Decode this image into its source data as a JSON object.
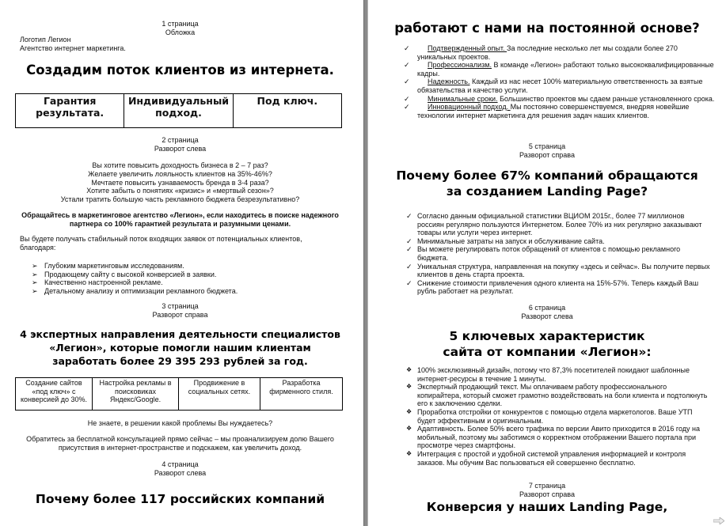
{
  "left_page": {
    "p1_label": "1 страница",
    "p1_sub": "Обложка",
    "logo_line": "Логотип Легион",
    "agency_line": "Агентство интернет маркетинга.",
    "title": "Создадим поток клиентов из интернета.",
    "table1": [
      "Гарантия результата.",
      "Индивидуальный подход.",
      "Под ключ."
    ],
    "p2_label": "2 страница",
    "p2_sub": "Разворот слева",
    "questions": [
      "Вы хотите повысить доходность бизнеса в 2 – 7 раз?",
      "Желаете увеличить лояльность клиентов на 35%-46%?",
      "Мечтаете повысить узнаваемость бренда в 3-4 раза?",
      "Хотите забыть о понятиях «кризис» и «мертвый сезон»?",
      "Устали тратить большую часть рекламного бюджета безрезультативно?"
    ],
    "bold_para": "Обращайтесь в маркетинговое агентство «Легион», если находитесь в поиске надежного партнера со 100% гарантией результата и разумными ценами.",
    "intro": "Вы будете получать стабильный поток входящих заявок от потенциальных клиентов, благодаря:",
    "reasons": [
      "Глубоким маркетинговым исследованиям.",
      "Продающему сайту с высокой конверсией в заявки.",
      "Качественно настроенной рекламе.",
      "Детальному анализу и оптимизации рекламного бюджета."
    ],
    "p3_label": "3 страница",
    "p3_sub": "Разворот справа",
    "heading3": [
      "4 экспертных направления деятельности специалистов",
      "«Легион», которые помогли нашим клиентам",
      "заработать более 29 395 293 рублей за год."
    ],
    "table2": [
      "Создание сайтов «под ключ» с конверсией до 30%.",
      "Настройка рекламы в поисковиках Яндекс/Google.",
      "Продвижение в социальных сетях.",
      "Разработка фирменного стиля."
    ],
    "question": "Не знаете, в решении какой проблемы Вы нуждаетесь?",
    "consult": "Обратитесь за бесплатной консультацией прямо сейчас – мы проанализируем долю Вашего присутствия в интернет-пространстве и подскажем, как увеличить доход.",
    "p4_label": "4 страница",
    "p4_sub": "Разворот слева",
    "heading4": "Почему более 117 российских компаний"
  },
  "right_page": {
    "heading_cont": "работают с нами на постоянной основе?",
    "advantages": [
      {
        "term": "Подтвержденный опыт. ",
        "text": " За последние несколько лет мы создали более 270 уникальных проектов."
      },
      {
        "term": "Профессионализм.",
        "text": " В команде «Легион» работают только высококвалифицированные кадры."
      },
      {
        "term": "Надежность.",
        "text": " Каждый из нас несет 100% материальную ответственность за взятые обязательства и качество услуги."
      },
      {
        "term": "Минимальные сроки.",
        "text": " Большинство проектов мы сдаем раньше установленного срока."
      },
      {
        "term": "Инновационный подход. ",
        "text": "Мы постоянно совершенствуемся, внедряя новейшие технологии интернет маркетинга для решения задач наших клиентов."
      }
    ],
    "p5_label": "5 страница",
    "p5_sub": "Разворот справа",
    "heading5": [
      "Почему более 67% компаний обращаются",
      "за созданием Landing Page?"
    ],
    "landing_reasons": [
      "Согласно данным официальной статистики ВЦИОМ 2015г., более 77 миллионов россиян регулярно пользуются Интернетом. Более 70% из них регулярно заказывают товары или услуги через интернет.",
      "Минимальные затраты на запуск и обслуживание сайта.",
      "Вы можете регулировать поток обращений от клиентов с помощью рекламного бюджета.",
      "Уникальная структура, направленная на покупку «здесь и сейчас». Вы получите первых клиентов в день старта проекта.",
      "Снижение стоимости привлечения одного клиента на 15%-57%. Теперь каждый Ваш рубль работает на результат."
    ],
    "p6_label": "6 страница",
    "p6_sub": "Разворот слева",
    "heading6": [
      "5 ключевых характеристик",
      "сайта от компании «Легион»:"
    ],
    "features": [
      "100% эксклюзивный дизайн, потому что 87,3% посетителей покидают шаблонные интернет-ресурсы в течение 1 минуты.",
      "Экспертный продающий текст. Мы оплачиваем работу профессионального копирайтера, который сможет грамотно воздействовать на боли клиента и подтолкнуть его к заключению сделки.",
      "Проработка отстройки от конкурентов с помощью отдела маркетологов. Ваше УТП будет эффективным и оригинальным.",
      "Адаптивность. Более 50% всего трафика по версии Авито приходится в 2016 году на мобильный, поэтому мы заботимся о корректном отображении Вашего портала при просмотре через смартфоны.",
      "Интеграция с простой и удобной системой управления информацией и контроля заказов. Мы обучим Вас пользоваться ей совершенно бесплатно."
    ],
    "p7_label": "7 страница",
    "p7_sub": "Разворот справа",
    "heading7": "Конверсия у наших Landing Page,"
  },
  "icons": {
    "arrow_bullet": "➢",
    "check_bullet": "✓",
    "diamond_bullet": "❖",
    "next_page": "arrow-right-icon"
  }
}
